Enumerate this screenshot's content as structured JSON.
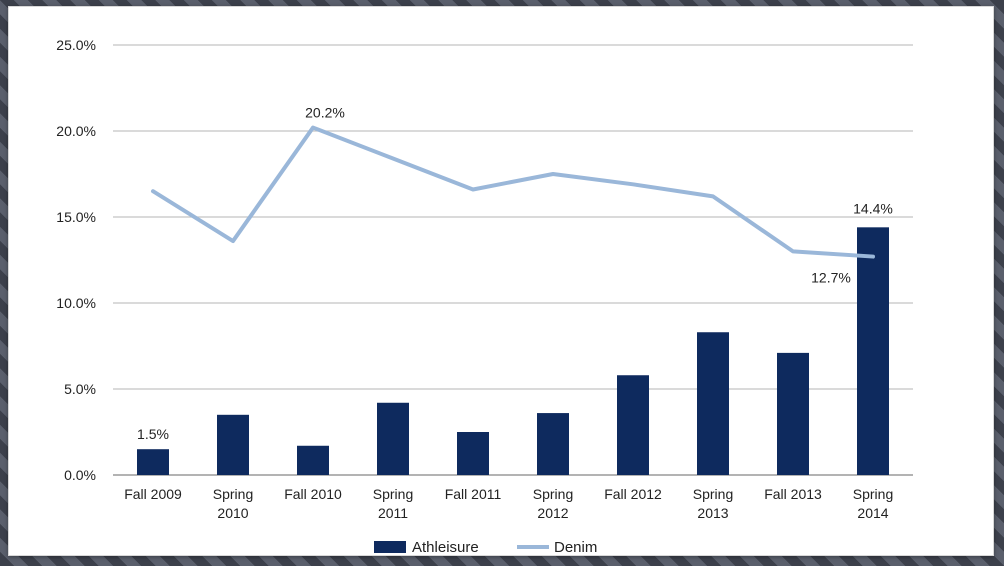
{
  "chart_data": {
    "type": "bar",
    "categories": [
      [
        "Fall 2009"
      ],
      [
        "Spring",
        "2010"
      ],
      [
        "Fall 2010"
      ],
      [
        "Spring",
        "2011"
      ],
      [
        "Fall 2011"
      ],
      [
        "Spring",
        "2012"
      ],
      [
        "Fall 2012"
      ],
      [
        "Spring",
        "2013"
      ],
      [
        "Fall 2013"
      ],
      [
        "Spring",
        "2014"
      ]
    ],
    "series": [
      {
        "name": "Athleisure",
        "kind": "bar",
        "color": "#0e2a5e",
        "values": [
          1.5,
          3.5,
          1.7,
          4.2,
          2.5,
          3.6,
          5.8,
          8.3,
          7.1,
          14.4
        ]
      },
      {
        "name": "Denim",
        "kind": "line",
        "color": "#9ab7d9",
        "values": [
          16.5,
          13.6,
          20.2,
          18.4,
          16.6,
          17.5,
          16.9,
          16.2,
          13.0,
          12.7
        ]
      }
    ],
    "y_ticks": [
      "0.0%",
      "5.0%",
      "10.0%",
      "15.0%",
      "20.0%",
      "25.0%"
    ],
    "ylim": [
      0,
      25
    ],
    "grid": true,
    "legend_position": "bottom",
    "annotations": [
      {
        "series": "Athleisure",
        "index": 0,
        "text": "1.5%"
      },
      {
        "series": "Denim",
        "index": 2,
        "text": "20.2%"
      },
      {
        "series": "Athleisure",
        "index": 9,
        "text": "14.4%"
      },
      {
        "series": "Denim",
        "index": 9,
        "text": "12.7%"
      }
    ]
  }
}
